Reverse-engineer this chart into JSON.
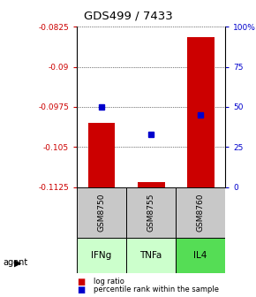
{
  "title": "GDS499 / 7433",
  "samples": [
    "GSM8750",
    "GSM8755",
    "GSM8760"
  ],
  "agents": [
    "IFNg",
    "TNFa",
    "IL4"
  ],
  "log_ratios": [
    -0.1005,
    -0.1115,
    -0.0845
  ],
  "percentile_ranks": [
    50,
    33,
    45
  ],
  "ylim": [
    -0.1125,
    -0.0825
  ],
  "yticks": [
    -0.0825,
    -0.09,
    -0.0975,
    -0.105,
    -0.1125
  ],
  "ytick_labels": [
    "-0.0825",
    "-0.09",
    "-0.0975",
    "-0.105",
    "-0.1125"
  ],
  "y2ticks": [
    0,
    25,
    50,
    75,
    100
  ],
  "y2tick_labels": [
    "0",
    "25",
    "50",
    "75",
    "100%"
  ],
  "bar_color": "#cc0000",
  "dot_color": "#0000cc",
  "sample_bg": "#c8c8c8",
  "agent_colors": [
    "#ccffcc",
    "#ccffcc",
    "#55dd55"
  ],
  "left_tick_color": "#cc0000",
  "right_tick_color": "#0000cc",
  "bar_width": 0.55,
  "legend_log_ratio": "log ratio",
  "legend_percentile": "percentile rank within the sample"
}
